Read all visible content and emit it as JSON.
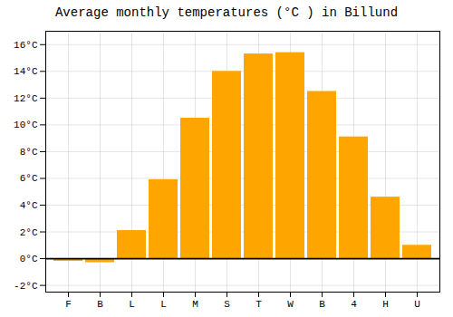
{
  "chart_data": {
    "type": "bar",
    "title": "Average monthly temperatures (°C ) in Billund",
    "categories": [
      "F",
      "B",
      "L",
      "L",
      "M",
      "S",
      "T",
      "W",
      "B",
      "4",
      "H",
      "U"
    ],
    "values": [
      -0.2,
      -0.3,
      2.1,
      5.9,
      10.5,
      14.0,
      15.3,
      15.4,
      12.5,
      9.1,
      4.6,
      1.0
    ],
    "color": "#FFA500",
    "ylim": [
      -2.5,
      17
    ],
    "yticks": [
      {
        "value": -2,
        "label": "-2°C"
      },
      {
        "value": 0,
        "label": "0°C"
      },
      {
        "value": 2,
        "label": "2°C"
      },
      {
        "value": 4,
        "label": "4°C"
      },
      {
        "value": 6,
        "label": "6°C"
      },
      {
        "value": 8,
        "label": "8°C"
      },
      {
        "value": 10,
        "label": "10°C"
      },
      {
        "value": 12,
        "label": "12°C"
      },
      {
        "value": 14,
        "label": "14°C"
      },
      {
        "value": 16,
        "label": "16°C"
      }
    ],
    "grid": true
  }
}
